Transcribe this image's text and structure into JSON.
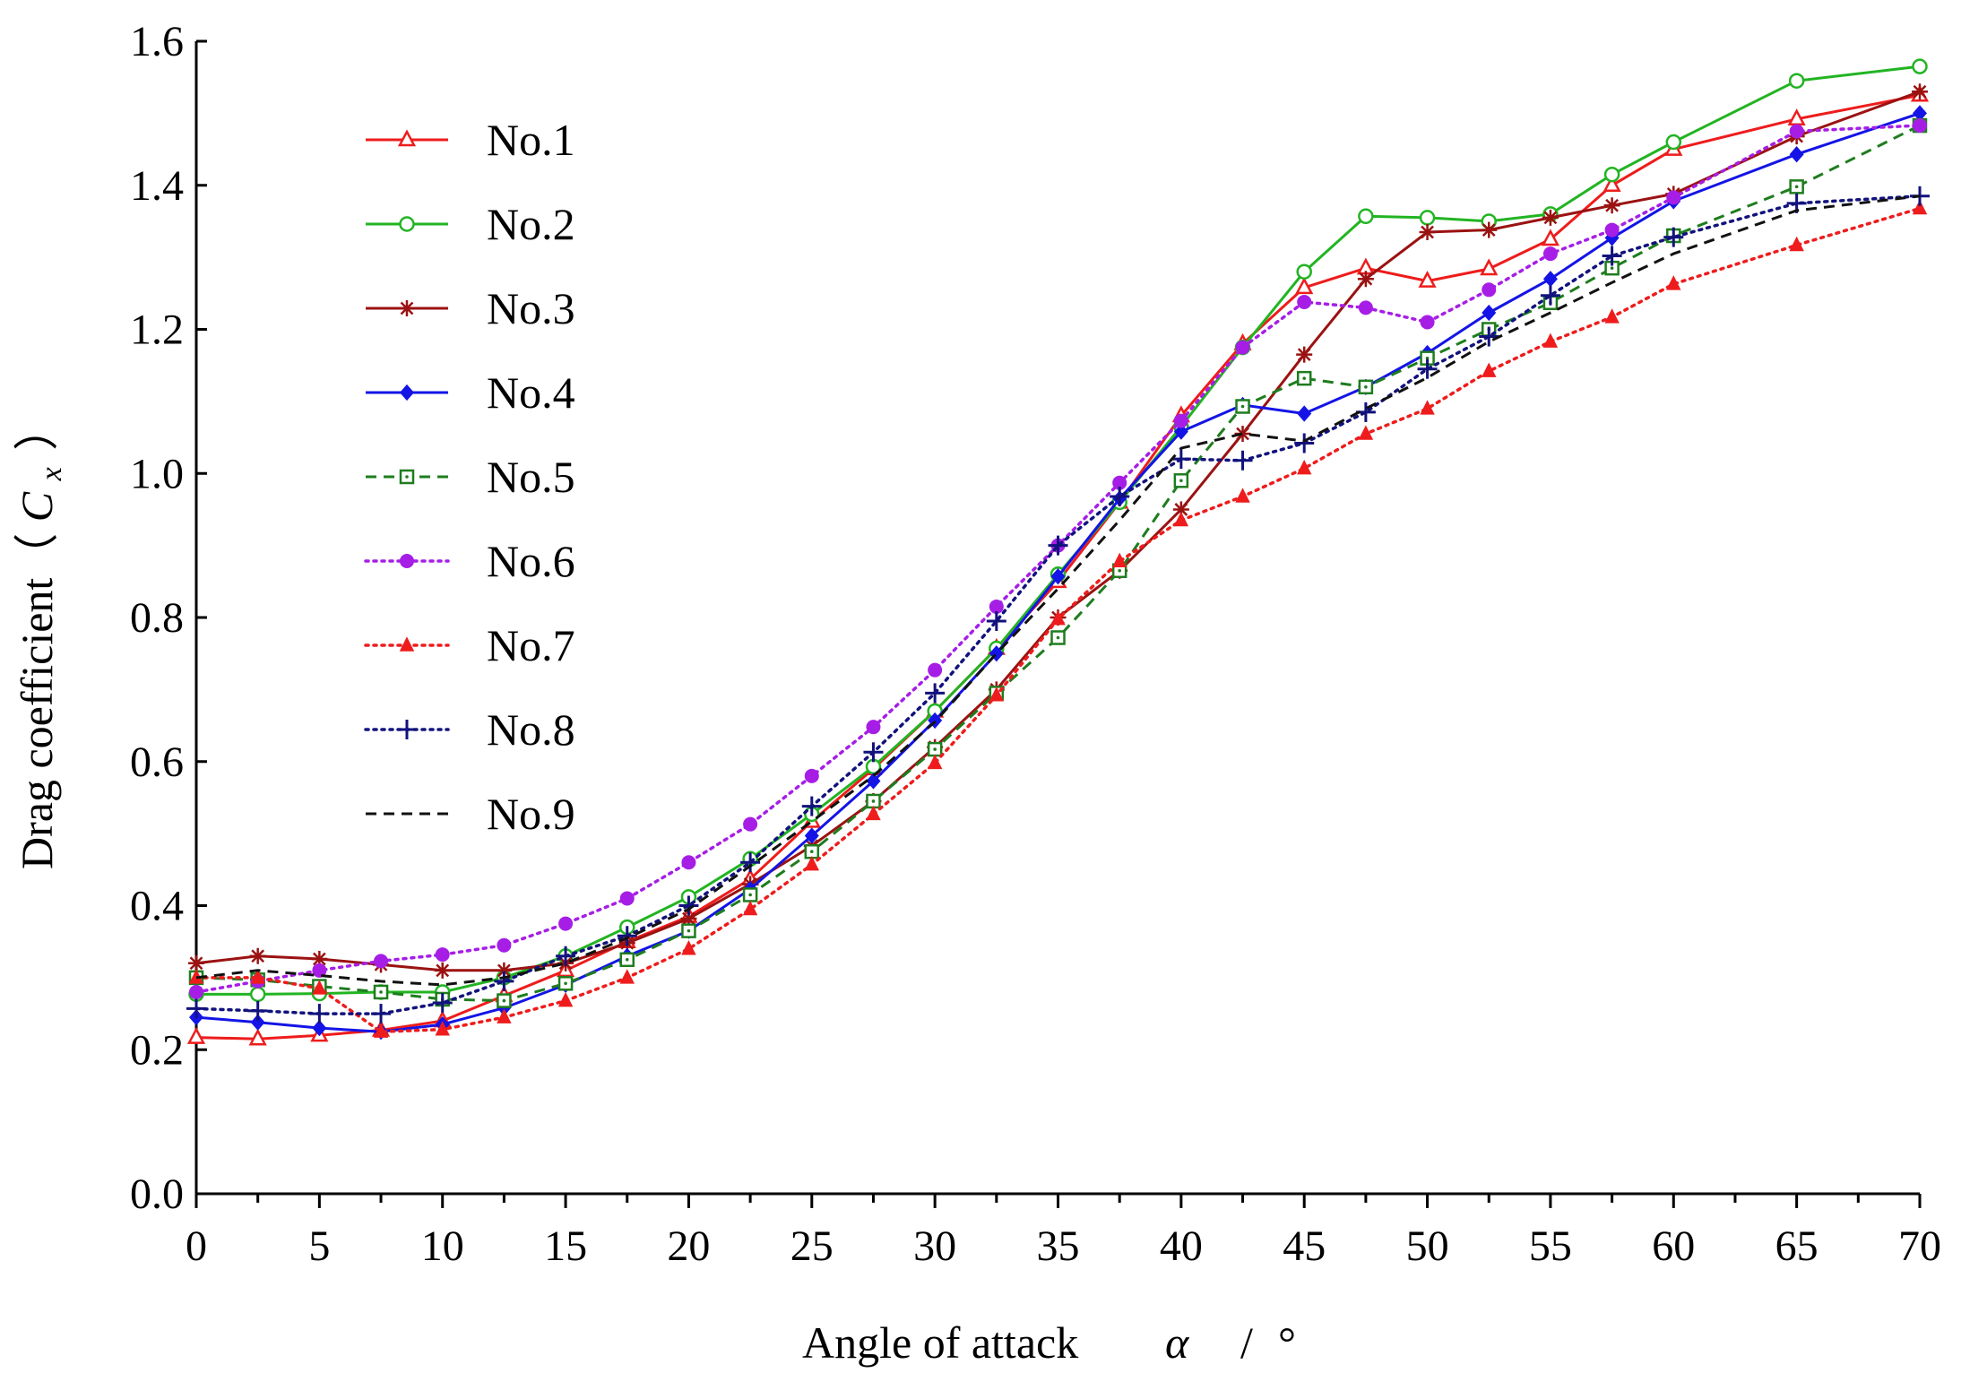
{
  "chart_data": {
    "type": "line",
    "title": "",
    "xlabel": "Angle of attack",
    "xlabel_symbol": "α",
    "xlabel_sep": "/",
    "xlabel_unit": "°",
    "ylabel": "Drag coefficient（",
    "ylabel_symbol": "C",
    "ylabel_sub": "x",
    "ylabel_close": "）",
    "xlim": [
      0,
      70
    ],
    "ylim": [
      0,
      1.6
    ],
    "xticks": [
      "0",
      "5",
      "10",
      "15",
      "20",
      "25",
      "30",
      "35",
      "40",
      "45",
      "50",
      "55",
      "60",
      "65",
      "70"
    ],
    "yticks": [
      "0.0",
      "0.2",
      "0.4",
      "0.6",
      "0.8",
      "1.0",
      "1.2",
      "1.4",
      "1.6"
    ],
    "grid": false,
    "legend_position": "top-left",
    "series": [
      {
        "name": "No.1",
        "color": "#ee1c1c",
        "dash": "solid",
        "marker": "triangle-open",
        "x": [
          0,
          2.5,
          5,
          7.5,
          10,
          12.5,
          15,
          17.5,
          20,
          22.5,
          25,
          27.5,
          30,
          32.5,
          35,
          37.5,
          40,
          42.5,
          45,
          47.5,
          50,
          52.5,
          55,
          57.5,
          60,
          65,
          70
        ],
        "y": [
          0.217,
          0.215,
          0.22,
          0.227,
          0.24,
          0.275,
          0.31,
          0.35,
          0.385,
          0.437,
          0.517,
          0.59,
          0.67,
          0.757,
          0.85,
          0.96,
          1.08,
          1.18,
          1.258,
          1.285,
          1.267,
          1.284,
          1.325,
          1.4,
          1.45,
          1.492,
          1.525
        ]
      },
      {
        "name": "No.2",
        "color": "#22b422",
        "dash": "solid",
        "marker": "circle-open",
        "x": [
          0,
          2.5,
          5,
          7.5,
          10,
          12.5,
          15,
          17.5,
          20,
          22.5,
          25,
          27.5,
          30,
          32.5,
          35,
          37.5,
          40,
          42.5,
          45,
          47.5,
          50,
          52.5,
          55,
          57.5,
          60,
          65,
          70
        ],
        "y": [
          0.277,
          0.277,
          0.278,
          0.28,
          0.28,
          0.3,
          0.33,
          0.37,
          0.412,
          0.465,
          0.527,
          0.593,
          0.67,
          0.757,
          0.86,
          0.96,
          1.065,
          1.175,
          1.28,
          1.357,
          1.355,
          1.35,
          1.36,
          1.415,
          1.46,
          1.545,
          1.565
        ]
      },
      {
        "name": "No.3",
        "color": "#9b1212",
        "dash": "solid",
        "marker": "asterisk",
        "x": [
          0,
          2.5,
          5,
          7.5,
          10,
          12.5,
          15,
          17.5,
          20,
          22.5,
          25,
          27.5,
          30,
          32.5,
          35,
          37.5,
          40,
          42.5,
          45,
          47.5,
          50,
          52.5,
          55,
          57.5,
          60,
          65,
          70
        ],
        "y": [
          0.32,
          0.33,
          0.326,
          0.318,
          0.31,
          0.31,
          0.32,
          0.348,
          0.382,
          0.43,
          0.483,
          0.545,
          0.62,
          0.7,
          0.8,
          0.865,
          0.95,
          1.055,
          1.165,
          1.27,
          1.335,
          1.338,
          1.355,
          1.372,
          1.388,
          1.468,
          1.53
        ]
      },
      {
        "name": "No.4",
        "color": "#1414e6",
        "dash": "solid",
        "marker": "diamond-filled",
        "x": [
          0,
          2.5,
          5,
          7.5,
          10,
          12.5,
          15,
          17.5,
          20,
          22.5,
          25,
          27.5,
          30,
          32.5,
          35,
          37.5,
          40,
          42.5,
          45,
          47.5,
          50,
          52.5,
          55,
          57.5,
          60,
          65,
          70
        ],
        "y": [
          0.245,
          0.238,
          0.23,
          0.225,
          0.235,
          0.258,
          0.29,
          0.33,
          0.365,
          0.423,
          0.497,
          0.573,
          0.657,
          0.75,
          0.857,
          0.965,
          1.058,
          1.095,
          1.083,
          1.12,
          1.167,
          1.223,
          1.27,
          1.327,
          1.378,
          1.443,
          1.5
        ]
      },
      {
        "name": "No.5",
        "color": "#1e7d1e",
        "dash": "dashed",
        "marker": "square-dot",
        "x": [
          0,
          2.5,
          5,
          7.5,
          10,
          12.5,
          15,
          17.5,
          20,
          22.5,
          25,
          27.5,
          30,
          32.5,
          35,
          37.5,
          40,
          42.5,
          45,
          47.5,
          50,
          52.5,
          55,
          57.5,
          60,
          65,
          70
        ],
        "y": [
          0.3,
          0.297,
          0.288,
          0.28,
          0.27,
          0.268,
          0.292,
          0.325,
          0.365,
          0.415,
          0.475,
          0.545,
          0.617,
          0.695,
          0.772,
          0.865,
          0.99,
          1.093,
          1.132,
          1.12,
          1.16,
          1.2,
          1.237,
          1.285,
          1.33,
          1.398,
          1.483
        ]
      },
      {
        "name": "No.6",
        "color": "#a61ee6",
        "dash": "dotted",
        "marker": "circle-filled",
        "x": [
          0,
          2.5,
          5,
          7.5,
          10,
          12.5,
          15,
          17.5,
          20,
          22.5,
          25,
          27.5,
          30,
          32.5,
          35,
          37.5,
          40,
          42.5,
          45,
          47.5,
          50,
          52.5,
          55,
          57.5,
          60,
          65,
          70
        ],
        "y": [
          0.28,
          0.295,
          0.31,
          0.323,
          0.332,
          0.345,
          0.375,
          0.41,
          0.46,
          0.513,
          0.58,
          0.648,
          0.727,
          0.815,
          0.9,
          0.987,
          1.073,
          1.175,
          1.238,
          1.23,
          1.21,
          1.255,
          1.305,
          1.338,
          1.383,
          1.475,
          1.483
        ]
      },
      {
        "name": "No.7",
        "color": "#ee1c1c",
        "dash": "dotted",
        "marker": "triangle-filled",
        "x": [
          0,
          2.5,
          5,
          7.5,
          10,
          12.5,
          15,
          17.5,
          20,
          22.5,
          25,
          27.5,
          30,
          32.5,
          35,
          37.5,
          40,
          42.5,
          45,
          47.5,
          50,
          52.5,
          55,
          57.5,
          60,
          65,
          70
        ],
        "y": [
          0.3,
          0.3,
          0.285,
          0.225,
          0.228,
          0.245,
          0.268,
          0.3,
          0.34,
          0.395,
          0.457,
          0.527,
          0.598,
          0.692,
          0.798,
          0.878,
          0.935,
          0.968,
          1.007,
          1.055,
          1.09,
          1.142,
          1.183,
          1.217,
          1.263,
          1.317,
          1.368
        ]
      },
      {
        "name": "No.8",
        "color": "#12127d",
        "dash": "dotted",
        "marker": "plus",
        "x": [
          0,
          2.5,
          5,
          7.5,
          10,
          12.5,
          15,
          17.5,
          20,
          22.5,
          25,
          27.5,
          30,
          32.5,
          35,
          37.5,
          40,
          42.5,
          45,
          47.5,
          50,
          52.5,
          55,
          57.5,
          60,
          65,
          70
        ],
        "y": [
          0.257,
          0.254,
          0.25,
          0.25,
          0.265,
          0.295,
          0.33,
          0.358,
          0.4,
          0.46,
          0.538,
          0.613,
          0.695,
          0.795,
          0.9,
          0.968,
          1.02,
          1.018,
          1.042,
          1.085,
          1.145,
          1.19,
          1.247,
          1.302,
          1.328,
          1.375,
          1.385
        ]
      },
      {
        "name": "No.9",
        "color": "#111111",
        "dash": "dashed",
        "marker": "none",
        "x": [
          0,
          2.5,
          5,
          7.5,
          10,
          12.5,
          15,
          17.5,
          20,
          22.5,
          25,
          27.5,
          30,
          32.5,
          35,
          37.5,
          40,
          42.5,
          45,
          47.5,
          50,
          52.5,
          55,
          57.5,
          60,
          65,
          70
        ],
        "y": [
          0.3,
          0.31,
          0.303,
          0.295,
          0.29,
          0.3,
          0.32,
          0.355,
          0.395,
          0.455,
          0.517,
          0.58,
          0.655,
          0.75,
          0.84,
          0.935,
          1.035,
          1.055,
          1.045,
          1.09,
          1.133,
          1.183,
          1.223,
          1.265,
          1.305,
          1.365,
          1.385
        ]
      }
    ]
  }
}
